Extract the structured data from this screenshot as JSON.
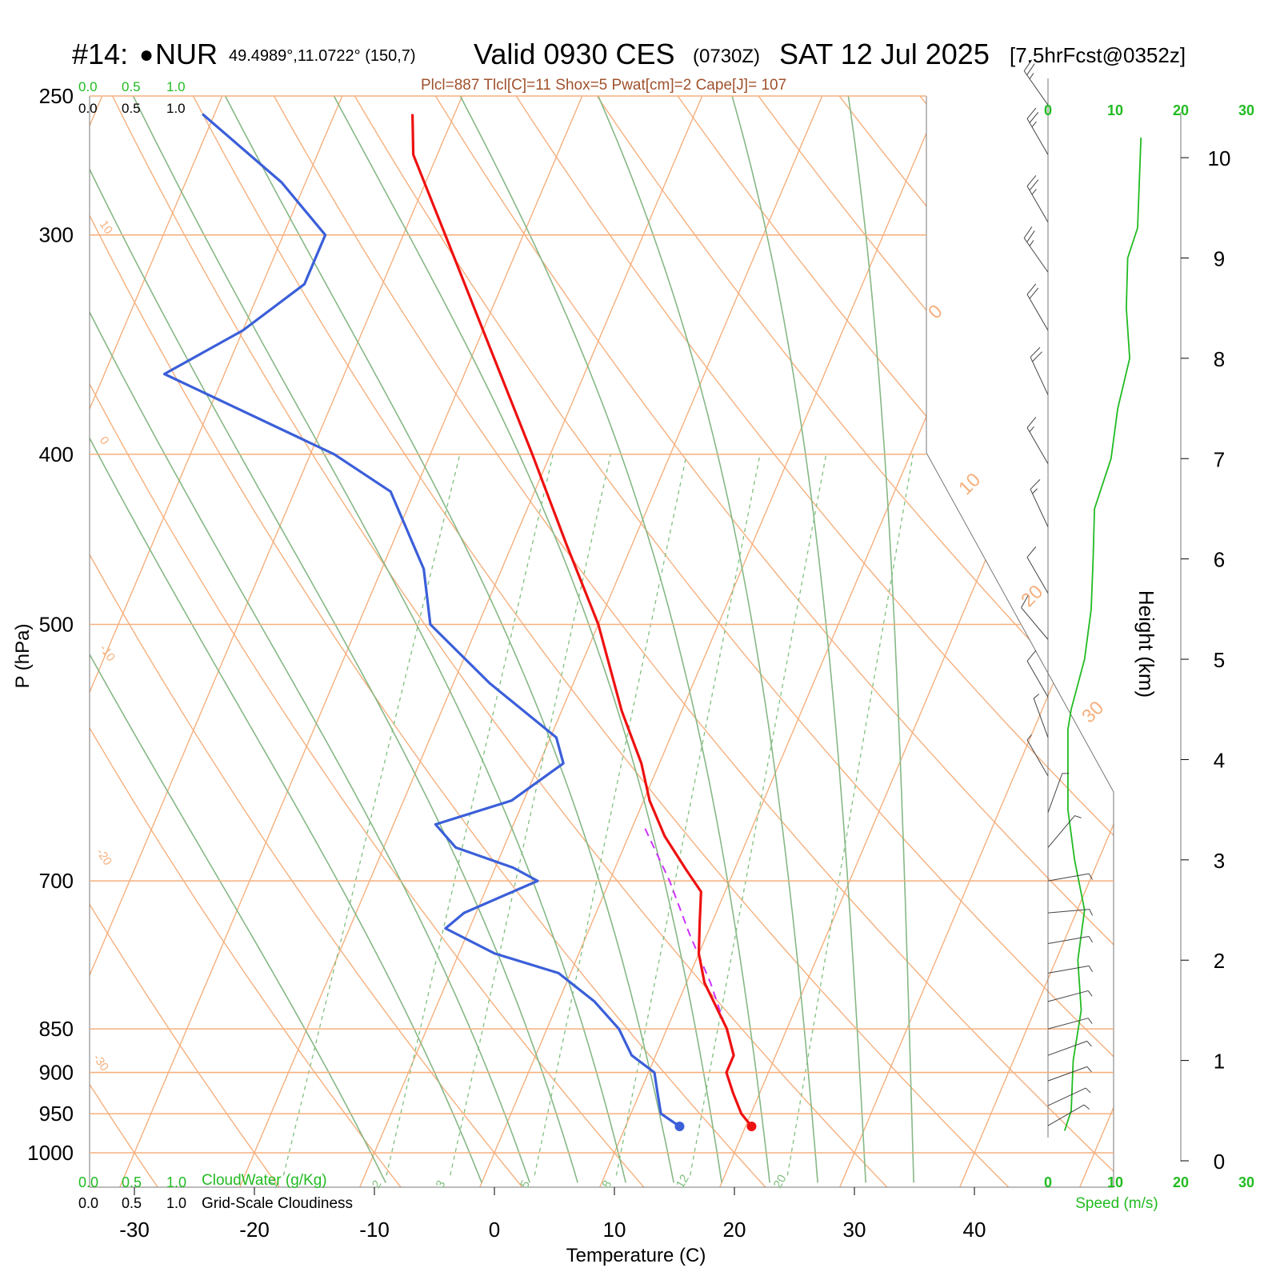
{
  "header": {
    "station_id": "#14:",
    "station_marker": "●",
    "station_code": "NUR",
    "coords": "49.4989°,11.0722° (150,7)",
    "valid": "Valid 0930 CES",
    "zulu": "(0730Z)",
    "date": "SAT 12 Jul 2025",
    "forecast": "[7.5hrFcst@0352z]",
    "params": "Plcl=887 Tlcl[C]=11 Shox=5 Pwat[cm]=2 Cape[J]= 107"
  },
  "scales": {
    "top_green": [
      "0.0",
      "0.5",
      "1.0"
    ],
    "top_black": [
      "0.0",
      "0.5",
      "1.0"
    ],
    "bottom_green": [
      "0.0",
      "0.5",
      "1.0"
    ],
    "bottom_green_label": "CloudWater (g/Kg)",
    "bottom_black": [
      "0.0",
      "0.5",
      "1.0"
    ],
    "bottom_black_label": "Grid-Scale Cloudiness",
    "speed_ticks": [
      "0",
      "10",
      "20",
      "30"
    ],
    "speed_label": "Speed (m/s)"
  },
  "colors": {
    "temperature": "#ee1111",
    "dewpoint": "#3b5fd9",
    "parcel": "#cc33ff",
    "isotherm": "#f5b07e",
    "dry_adiabat": "#f5b07e",
    "moist_adiabat": "#86b886",
    "mixing_ratio": "#7fbf7f",
    "wind_speed": "#22bb22",
    "label_brown": "#a0522d"
  },
  "chart_data": {
    "type": "skew-t",
    "xlabel": "Temperature (C)",
    "ylabel": "P (hPa)",
    "y2label": "Height (km)",
    "xlim": [
      -30,
      40
    ],
    "ylim": [
      1000,
      250
    ],
    "x_ticks": [
      -30,
      -20,
      -10,
      0,
      10,
      20,
      30,
      40
    ],
    "p_ticks": [
      250,
      300,
      400,
      500,
      700,
      850,
      900,
      950,
      1000
    ],
    "height_ticks": [
      0,
      1,
      2,
      3,
      4,
      5,
      6,
      7,
      8,
      9,
      10
    ],
    "isotherm_labels": [
      "10",
      "0",
      "-10",
      "-20",
      "-30",
      "0",
      "10",
      "20",
      "30"
    ],
    "mixing_ratio_labels": [
      "1",
      "2",
      "3",
      "5",
      "8",
      "12",
      "20"
    ],
    "temperature_profile": [
      {
        "p": 966,
        "t": 20.5
      },
      {
        "p": 950,
        "t": 19.2
      },
      {
        "p": 925,
        "t": 17.8
      },
      {
        "p": 900,
        "t": 16.5
      },
      {
        "p": 880,
        "t": 16.5
      },
      {
        "p": 850,
        "t": 15.0
      },
      {
        "p": 800,
        "t": 11.5
      },
      {
        "p": 770,
        "t": 10.0
      },
      {
        "p": 740,
        "t": 9.0
      },
      {
        "p": 710,
        "t": 8.0
      },
      {
        "p": 690,
        "t": 6.0
      },
      {
        "p": 660,
        "t": 3.0
      },
      {
        "p": 630,
        "t": 0.5
      },
      {
        "p": 600,
        "t": -1.5
      },
      {
        "p": 560,
        "t": -5.0
      },
      {
        "p": 500,
        "t": -10.0
      },
      {
        "p": 450,
        "t": -15.5
      },
      {
        "p": 400,
        "t": -21.5
      },
      {
        "p": 360,
        "t": -27.0
      },
      {
        "p": 300,
        "t": -36.5
      },
      {
        "p": 270,
        "t": -42.0
      },
      {
        "p": 256,
        "t": -43.5
      }
    ],
    "dewpoint_profile": [
      {
        "p": 966,
        "td": 14.5
      },
      {
        "p": 950,
        "td": 12.5
      },
      {
        "p": 925,
        "td": 11.5
      },
      {
        "p": 900,
        "td": 10.5
      },
      {
        "p": 880,
        "td": 8.0
      },
      {
        "p": 850,
        "td": 6.0
      },
      {
        "p": 820,
        "td": 3.0
      },
      {
        "p": 790,
        "td": -1.0
      },
      {
        "p": 770,
        "td": -7.0
      },
      {
        "p": 745,
        "td": -12.0
      },
      {
        "p": 730,
        "td": -11.0
      },
      {
        "p": 700,
        "td": -6.0
      },
      {
        "p": 688,
        "td": -8.5
      },
      {
        "p": 670,
        "td": -14.0
      },
      {
        "p": 650,
        "td": -16.5
      },
      {
        "p": 630,
        "td": -11.0
      },
      {
        "p": 600,
        "td": -8.0
      },
      {
        "p": 580,
        "td": -9.5
      },
      {
        "p": 540,
        "td": -17.0
      },
      {
        "p": 500,
        "td": -24.0
      },
      {
        "p": 465,
        "td": -26.5
      },
      {
        "p": 420,
        "td": -32.0
      },
      {
        "p": 400,
        "td": -38.0
      },
      {
        "p": 360,
        "td": -55.0
      },
      {
        "p": 340,
        "td": -50.0
      },
      {
        "p": 320,
        "td": -46.5
      },
      {
        "p": 300,
        "td": -46.5
      },
      {
        "p": 280,
        "td": -52.0
      },
      {
        "p": 256,
        "td": -61.0
      }
    ],
    "parcel_profile": [
      {
        "p": 860,
        "t": 15.5
      },
      {
        "p": 800,
        "t": 12.0
      },
      {
        "p": 750,
        "t": 8.5
      },
      {
        "p": 700,
        "t": 5.0
      },
      {
        "p": 650,
        "t": 0.8
      }
    ],
    "surface_temperature": 20.5,
    "surface_dewpoint": 14.5,
    "wind_speed_profile": [
      {
        "z": 0.3,
        "speed": 2.5
      },
      {
        "z": 0.5,
        "speed": 3.5
      },
      {
        "z": 1.0,
        "speed": 3.8
      },
      {
        "z": 1.5,
        "speed": 5.0
      },
      {
        "z": 2.0,
        "speed": 4.5
      },
      {
        "z": 2.5,
        "speed": 5.5
      },
      {
        "z": 3.0,
        "speed": 4.0
      },
      {
        "z": 3.5,
        "speed": 3.0
      },
      {
        "z": 4.0,
        "speed": 3.0
      },
      {
        "z": 4.3,
        "speed": 3.0
      },
      {
        "z": 4.5,
        "speed": 3.5
      },
      {
        "z": 5.0,
        "speed": 5.5
      },
      {
        "z": 5.5,
        "speed": 6.5
      },
      {
        "z": 6.0,
        "speed": 6.8
      },
      {
        "z": 6.5,
        "speed": 7.0
      },
      {
        "z": 7.0,
        "speed": 9.5
      },
      {
        "z": 7.5,
        "speed": 10.5
      },
      {
        "z": 8.0,
        "speed": 12.3
      },
      {
        "z": 8.5,
        "speed": 11.8
      },
      {
        "z": 9.0,
        "speed": 12.0
      },
      {
        "z": 9.3,
        "speed": 13.5
      },
      {
        "z": 10.2,
        "speed": 14.0
      }
    ],
    "wind_barbs": [
      {
        "p": 965,
        "dir": 60,
        "speed": 2
      },
      {
        "p": 940,
        "dir": 65,
        "speed": 2
      },
      {
        "p": 910,
        "dir": 70,
        "speed": 2
      },
      {
        "p": 880,
        "dir": 70,
        "speed": 2
      },
      {
        "p": 850,
        "dir": 75,
        "speed": 2
      },
      {
        "p": 820,
        "dir": 75,
        "speed": 3
      },
      {
        "p": 790,
        "dir": 80,
        "speed": 3
      },
      {
        "p": 760,
        "dir": 80,
        "speed": 3
      },
      {
        "p": 730,
        "dir": 85,
        "speed": 3
      },
      {
        "p": 700,
        "dir": 80,
        "speed": 3
      },
      {
        "p": 670,
        "dir": 40,
        "speed": 3
      },
      {
        "p": 640,
        "dir": 20,
        "speed": 3
      },
      {
        "p": 610,
        "dir": 330,
        "speed": 3
      },
      {
        "p": 580,
        "dir": 340,
        "speed": 3
      },
      {
        "p": 550,
        "dir": 330,
        "speed": 4
      },
      {
        "p": 510,
        "dir": 320,
        "speed": 5
      },
      {
        "p": 480,
        "dir": 330,
        "speed": 6
      },
      {
        "p": 440,
        "dir": 335,
        "speed": 7
      },
      {
        "p": 405,
        "dir": 330,
        "speed": 9
      },
      {
        "p": 370,
        "dir": 335,
        "speed": 10
      },
      {
        "p": 340,
        "dir": 330,
        "speed": 11
      },
      {
        "p": 315,
        "dir": 325,
        "speed": 12
      },
      {
        "p": 295,
        "dir": 330,
        "speed": 12
      },
      {
        "p": 270,
        "dir": 330,
        "speed": 13
      },
      {
        "p": 253,
        "dir": 325,
        "speed": 14
      }
    ]
  }
}
